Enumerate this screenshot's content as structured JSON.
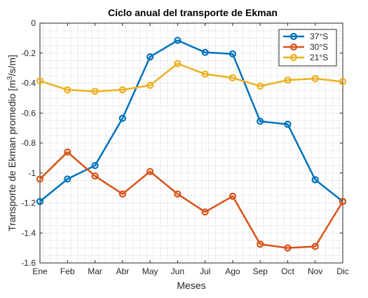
{
  "chart_data": {
    "type": "line",
    "title": "Ciclo anual del transporte de Ekman",
    "xlabel": "Meses",
    "ylabel": "Transporte de Ekman promedio [m³/s/m]",
    "ylabel_parts": {
      "pre": "Transporte de Ekman promedio [m",
      "sup": "3",
      "post": "/s/m]"
    },
    "categories": [
      "Ene",
      "Feb",
      "Mar",
      "Abr",
      "May",
      "Jun",
      "Jul",
      "Ago",
      "Sep",
      "Oct",
      "Nov",
      "Dic"
    ],
    "ylim": [
      -1.6,
      0
    ],
    "yticks": [
      0,
      -0.2,
      -0.4,
      -0.6,
      -0.8,
      -1,
      -1.2,
      -1.4,
      -1.6
    ],
    "ytick_labels": [
      "0",
      "-0.2",
      "-0.4",
      "-0.6",
      "-0.8",
      "-1",
      "-1.2",
      "-1.4",
      "-1.6"
    ],
    "grid": "minor-dotted",
    "legend_position": "top-right",
    "series": [
      {
        "name": "37°S",
        "color": "#0072BD",
        "values": [
          -1.19,
          -1.04,
          -0.95,
          -0.635,
          -0.225,
          -0.115,
          -0.195,
          -0.205,
          -0.655,
          -0.675,
          -1.045,
          -1.19
        ]
      },
      {
        "name": "30°S",
        "color": "#D95319",
        "values": [
          -1.04,
          -0.86,
          -1.02,
          -1.14,
          -0.99,
          -1.14,
          -1.26,
          -1.155,
          -1.475,
          -1.5,
          -1.49,
          -1.19
        ]
      },
      {
        "name": "21°S",
        "color": "#EDB120",
        "values": [
          -0.385,
          -0.445,
          -0.455,
          -0.445,
          -0.415,
          -0.27,
          -0.34,
          -0.365,
          -0.42,
          -0.38,
          -0.37,
          -0.39
        ]
      }
    ]
  }
}
